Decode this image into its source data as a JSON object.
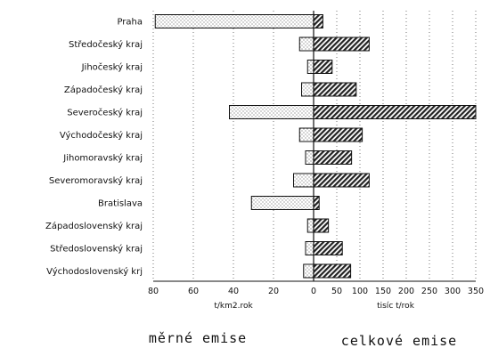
{
  "chart_data": {
    "type": "bar",
    "categories": [
      "Praha",
      "Středočeský kraj",
      "Jihočeský kraj",
      "Západočeský kraj",
      "Severočeský kraj",
      "Východočeský kraj",
      "Jihomoravský kraj",
      "Severomoravský kraj",
      "Bratislava",
      "Západoslovenský kraj",
      "Středoslovenský kraj",
      "Východoslovenský krj"
    ],
    "panels": [
      {
        "caption": "měrné emise",
        "xlabel": "t/km2.rok",
        "direction": "reversed",
        "xlim": [
          0,
          80
        ],
        "ticks": [
          "80",
          "60",
          "40",
          "20",
          "0"
        ],
        "tick_values": [
          80,
          60,
          40,
          20,
          0
        ],
        "values": [
          79,
          7,
          3,
          6,
          42,
          7,
          4,
          10,
          31,
          3,
          4,
          5
        ],
        "fill": "dotted"
      },
      {
        "caption": "celkové emise",
        "xlabel": "tisíc t/rok",
        "direction": "normal",
        "xlim": [
          0,
          350
        ],
        "ticks": [
          "0",
          "50",
          "100",
          "150",
          "200",
          "250",
          "300",
          "350"
        ],
        "tick_values": [
          0,
          50,
          100,
          150,
          200,
          250,
          300,
          350
        ],
        "values": [
          20,
          120,
          40,
          92,
          350,
          105,
          82,
          120,
          12,
          32,
          62,
          80
        ],
        "fill": "hatched"
      }
    ],
    "grid": true
  }
}
